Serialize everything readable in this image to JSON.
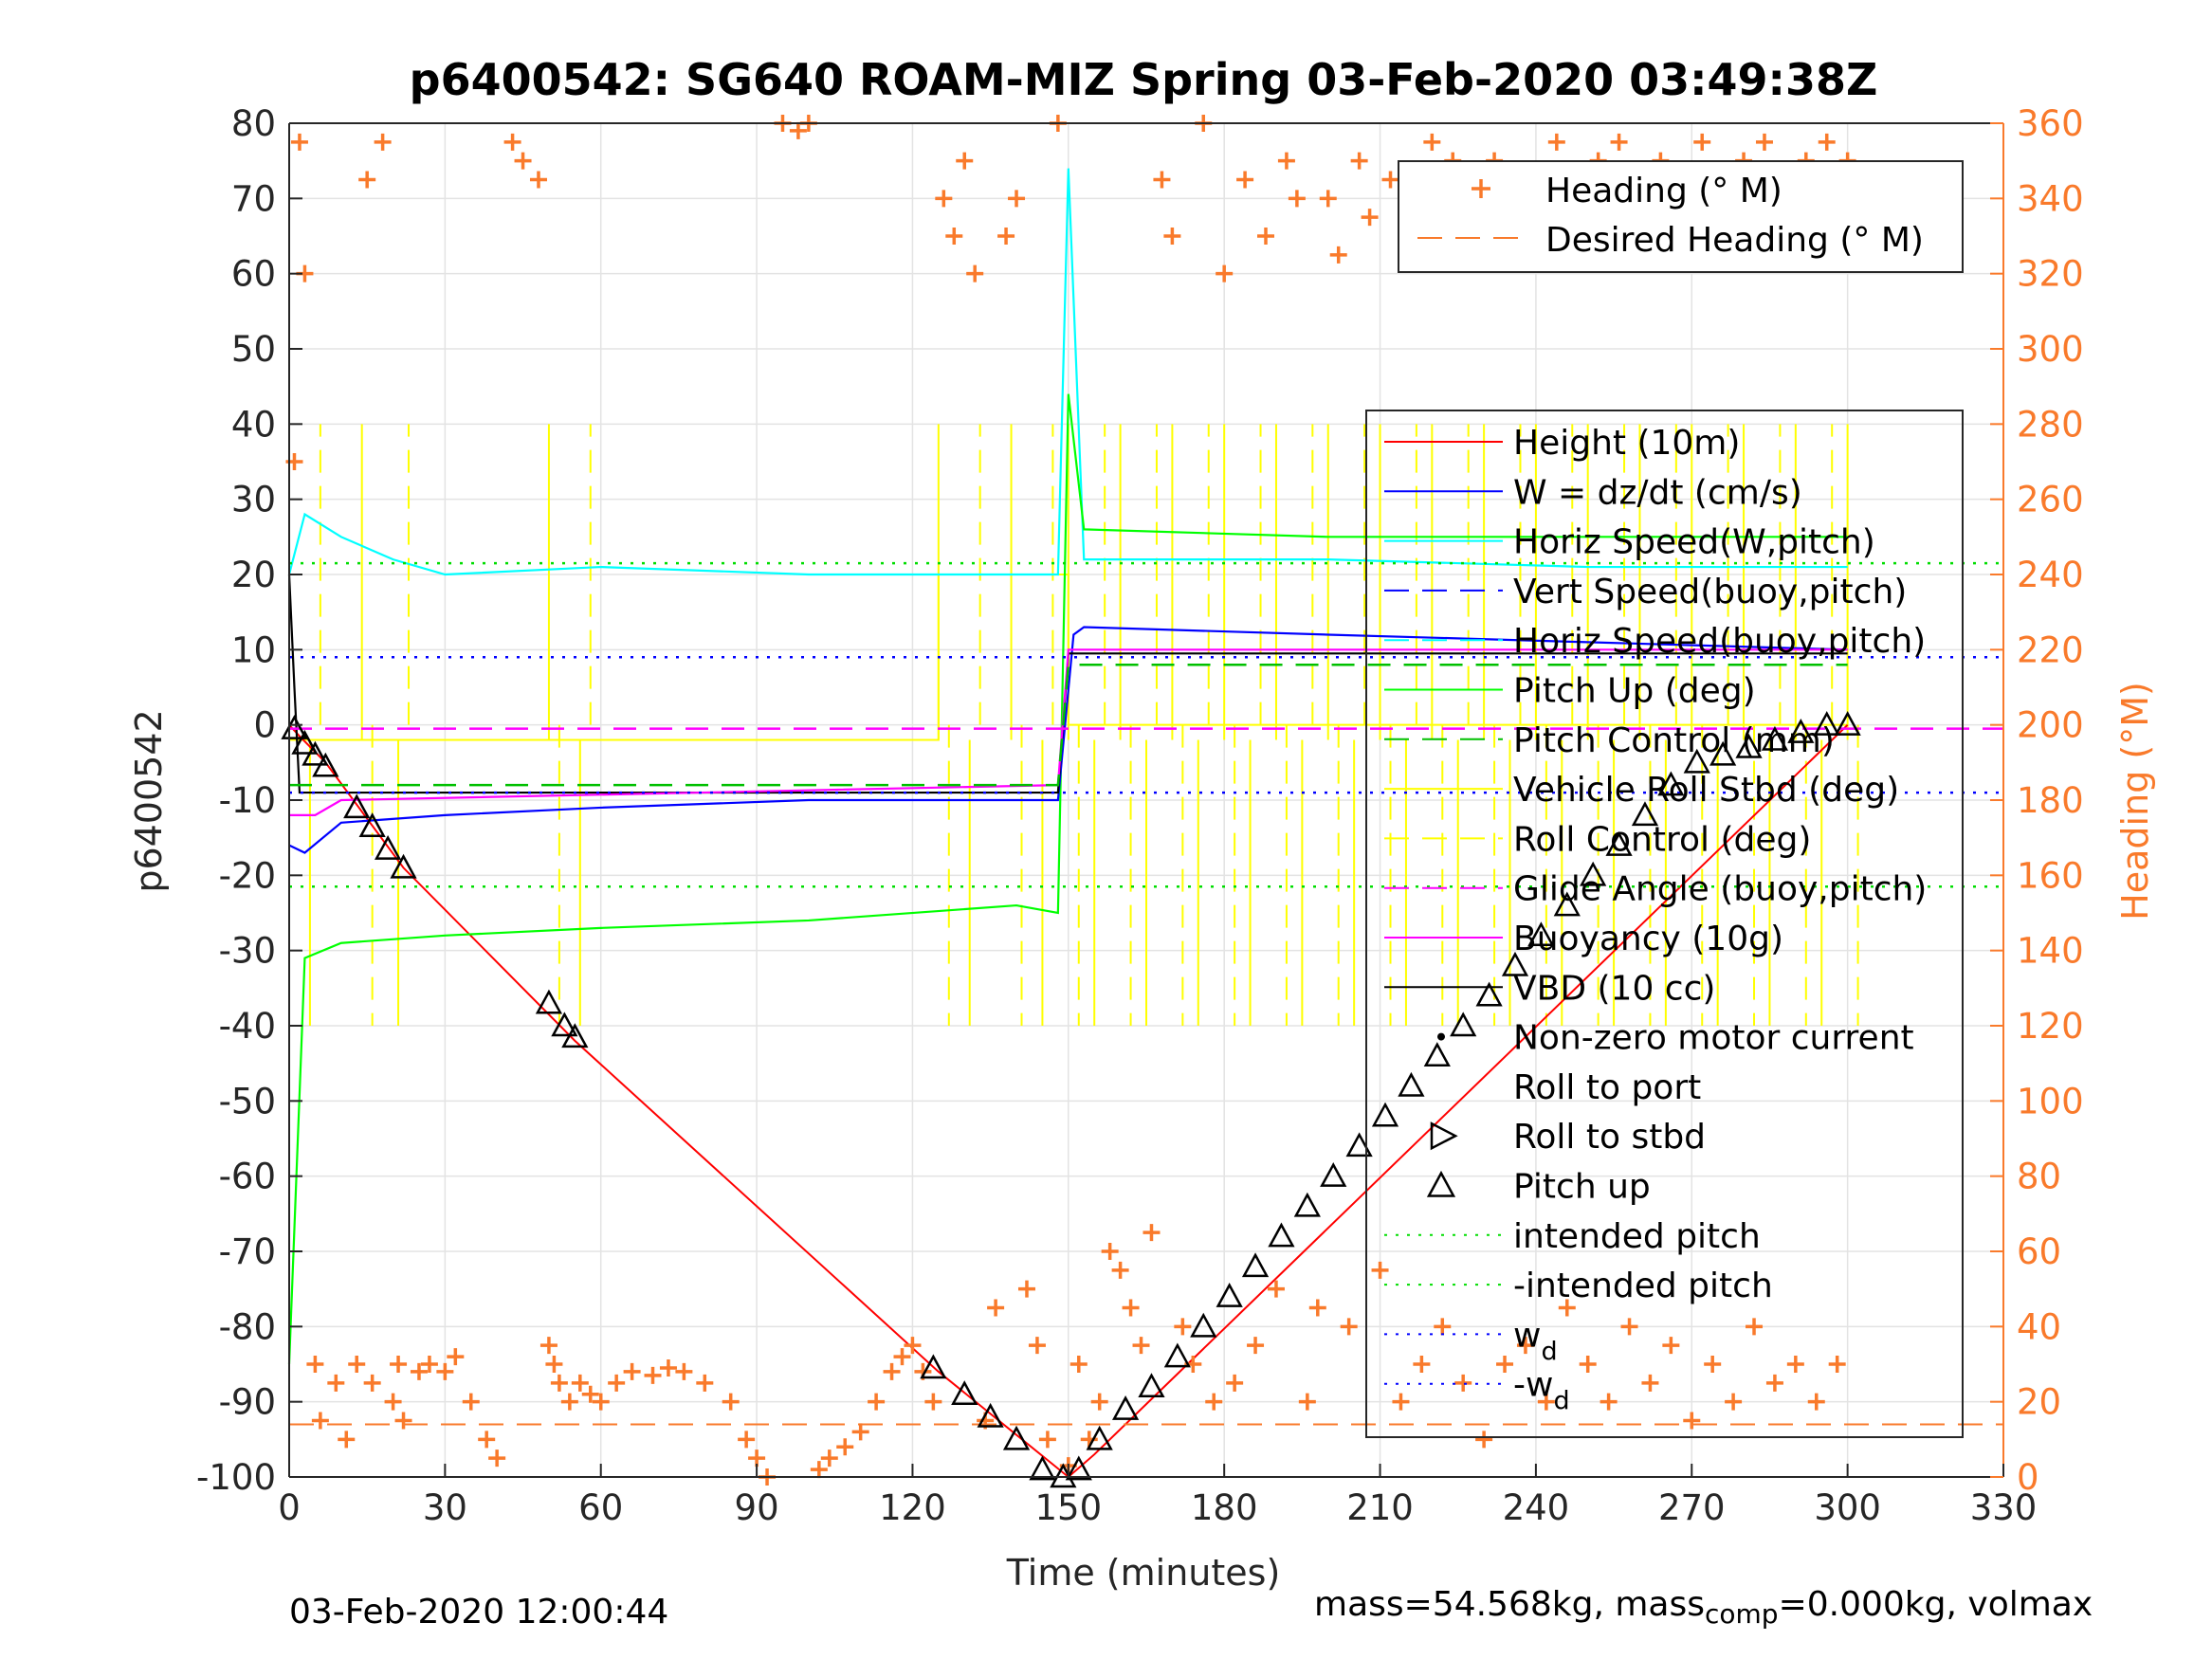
{
  "chart_data": {
    "type": "line",
    "title": "p6400542: SG640 ROAM-MIZ Spring 03-Feb-2020 03:49:38Z",
    "xlabel": "Time (minutes)",
    "ylabel": "p6400542",
    "ylabel_right": "Heading (°M)",
    "xlim": [
      0,
      330
    ],
    "ylim": [
      -100,
      80
    ],
    "ylim_right": [
      0,
      360
    ],
    "xticks": [
      0,
      30,
      60,
      90,
      120,
      150,
      180,
      210,
      240,
      270,
      300,
      330
    ],
    "yticks": [
      -100,
      -90,
      -80,
      -70,
      -60,
      -50,
      -40,
      -30,
      -20,
      -10,
      0,
      10,
      20,
      30,
      40,
      50,
      60,
      70,
      80
    ],
    "yticks_right": [
      0,
      20,
      40,
      60,
      80,
      100,
      120,
      140,
      160,
      180,
      200,
      220,
      240,
      260,
      280,
      300,
      320,
      340,
      360
    ],
    "grid": true,
    "colors": {
      "height": "#ff0000",
      "w": "#0000ff",
      "horiz_w": "#00ffff",
      "vert_buoy": "#0000ff",
      "horiz_buoy": "#00ffff",
      "pitch": "#00ff00",
      "pitch_control": "#00c000",
      "roll": "#ffff00",
      "roll_control": "#ffff00",
      "glide": "#ff00ff",
      "buoyancy": "#ff00ff",
      "vbd": "#000000",
      "heading": "#f97a2b",
      "intended": "#00dd00",
      "wd": "#0000ff",
      "right_axis": "#f97a2b"
    },
    "legend_heading": {
      "position": "top-right",
      "entries": [
        "Heading (° M)",
        "Desired Heading (° M)"
      ]
    },
    "legend_main": {
      "position": "right",
      "entries": [
        "Height (10m)",
        "W = dz/dt (cm/s)",
        "Horiz Speed(W,pitch)",
        "Vert Speed(buoy,pitch)",
        "Horiz Speed(buoy,pitch)",
        "Pitch Up (deg)",
        "Pitch Control (mm)",
        "Vehicle Roll Stbd (deg)",
        "Roll Control (deg)",
        "Glide Angle (buoy,pitch)",
        "Buoyancy (10g)",
        "VBD (10 cc)",
        "Non-zero motor current",
        "Roll to port",
        "Roll to stbd",
        "Pitch up",
        "intended pitch",
        "-intended pitch",
        "w_d",
        "-w_d"
      ]
    },
    "series": [
      {
        "name": "Height (10m)",
        "x": [
          0,
          2,
          7,
          22,
          55,
          125,
          150,
          155,
          300
        ],
        "y": [
          0,
          -1.5,
          -5,
          -19,
          -42,
          -86,
          -100,
          -97,
          0
        ]
      },
      {
        "name": "Horiz Speed(W,pitch)",
        "x": [
          0,
          3,
          10,
          20,
          30,
          60,
          100,
          130,
          148,
          150,
          153,
          200,
          250,
          300
        ],
        "y": [
          20,
          28,
          25,
          22,
          20,
          21,
          20,
          20,
          20,
          74,
          22,
          22,
          21,
          21
        ]
      },
      {
        "name": "Pitch Up (deg)",
        "x": [
          0,
          3,
          10,
          30,
          60,
          100,
          140,
          148,
          150,
          153,
          200,
          250,
          300
        ],
        "y": [
          -85,
          -31,
          -29,
          -28,
          -27,
          -26,
          -24,
          -25,
          44,
          26,
          25,
          25,
          25
        ]
      },
      {
        "name": "W = dz/dt (cm/s)",
        "x": [
          0,
          3,
          10,
          30,
          60,
          100,
          140,
          148,
          151,
          153,
          200,
          250,
          300
        ],
        "y": [
          -16,
          -17,
          -13,
          -12,
          -11,
          -10,
          -10,
          -10,
          12,
          13,
          12,
          11,
          10
        ]
      },
      {
        "name": "VBD (10 cc)",
        "x": [
          0,
          1,
          2,
          148,
          150,
          300
        ],
        "y": [
          20,
          5,
          -9,
          -9,
          9.5,
          9.5
        ]
      },
      {
        "name": "Buoyancy (10g)",
        "x": [
          0,
          5,
          10,
          148,
          150,
          300
        ],
        "y": [
          -12,
          -12,
          -10,
          -8,
          10,
          10
        ]
      },
      {
        "name": "Glide Angle (buoy,pitch)",
        "x": [
          0,
          330
        ],
        "y": [
          -0.5,
          -0.5
        ]
      },
      {
        "name": "Pitch Control (mm)",
        "x": [
          0,
          148,
          150,
          300
        ],
        "y": [
          -8,
          -8,
          8,
          8
        ]
      },
      {
        "name": "intended pitch",
        "x": [
          0,
          330
        ],
        "y": [
          21.5,
          21.5
        ]
      },
      {
        "name": "-intended pitch",
        "x": [
          0,
          330
        ],
        "y": [
          -21.5,
          -21.5
        ]
      },
      {
        "name": "w_d",
        "x": [
          0,
          330
        ],
        "y": [
          9,
          9
        ]
      },
      {
        "name": "-w_d",
        "x": [
          0,
          330
        ],
        "y": [
          -9,
          -9
        ]
      }
    ],
    "pitch_up_markers": {
      "x": [
        1,
        3,
        5,
        7,
        13,
        16,
        19,
        22,
        50,
        53,
        55,
        124,
        130,
        135,
        140,
        145,
        149,
        152,
        156,
        161,
        166,
        171,
        176,
        181,
        186,
        191,
        196,
        201,
        206,
        211,
        216,
        221,
        226,
        231,
        236,
        241,
        246,
        251,
        256,
        261,
        266,
        271,
        276,
        281,
        286,
        291,
        296,
        300
      ],
      "y": [
        -0.5,
        -2.5,
        -4,
        -5.5,
        -11,
        -13.5,
        -16.5,
        -19,
        -37,
        -40,
        -41.5,
        -85.5,
        -89,
        -92,
        -95,
        -99,
        -100,
        -99,
        -95,
        -91,
        -88,
        -84,
        -80,
        -76,
        -72,
        -68,
        -64,
        -60,
        -56,
        -52,
        -48,
        -44,
        -40,
        -36,
        -32,
        -28,
        -24,
        -20,
        -16,
        -12,
        -8,
        -5,
        -4,
        -3,
        -2,
        -1,
        0,
        0
      ]
    },
    "heading_points": {
      "x": [
        1,
        2,
        3,
        5,
        6,
        9,
        11,
        13,
        15,
        16,
        18,
        20,
        21,
        22,
        25,
        27,
        30,
        32,
        35,
        38,
        40,
        43,
        45,
        48,
        50,
        51,
        52,
        54,
        56,
        58,
        60,
        63,
        66,
        70,
        73,
        76,
        80,
        85,
        88,
        90,
        92,
        95,
        98,
        100,
        102,
        104,
        107,
        110,
        113,
        116,
        118,
        120,
        122,
        124,
        126,
        128,
        130,
        132,
        134,
        136,
        138,
        140,
        142,
        144,
        146,
        148,
        150,
        152,
        154,
        156,
        158,
        160,
        162,
        164,
        166,
        168,
        170,
        172,
        174,
        176,
        178,
        180,
        182,
        184,
        186,
        188,
        190,
        192,
        194,
        196,
        198,
        200,
        202,
        204,
        206,
        208,
        210,
        212,
        214,
        216,
        218,
        220,
        222,
        224,
        226,
        228,
        230,
        232,
        234,
        236,
        238,
        240,
        242,
        244,
        246,
        248,
        250,
        252,
        254,
        256,
        258,
        260,
        262,
        264,
        266,
        268,
        270,
        272,
        274,
        276,
        278,
        280,
        282,
        284,
        286,
        288,
        290,
        292,
        294,
        296,
        298,
        300
      ],
      "y": [
        270,
        355,
        320,
        30,
        15,
        25,
        10,
        30,
        345,
        25,
        355,
        20,
        30,
        15,
        28,
        30,
        28,
        32,
        20,
        10,
        5,
        355,
        350,
        345,
        35,
        30,
        25,
        20,
        25,
        22,
        20,
        25,
        28,
        27,
        29,
        28,
        25,
        20,
        10,
        5,
        0,
        360,
        358,
        360,
        2,
        5,
        8,
        12,
        20,
        28,
        32,
        35,
        28,
        20,
        340,
        330,
        350,
        320,
        15,
        45,
        330,
        340,
        50,
        35,
        10,
        360,
        3,
        30,
        10,
        20,
        60,
        55,
        45,
        35,
        65,
        345,
        330,
        40,
        30,
        360,
        20,
        320,
        25,
        345,
        35,
        330,
        50,
        350,
        340,
        20,
        45,
        340,
        325,
        40,
        350,
        335,
        55,
        345,
        20,
        340,
        30,
        355,
        40,
        350,
        25,
        345,
        10,
        350,
        30,
        345,
        35,
        340,
        20,
        355,
        45,
        345,
        30,
        350,
        20,
        355,
        40,
        345,
        25,
        350,
        35,
        340,
        15,
        355,
        30,
        345,
        20,
        350,
        40,
        355,
        25,
        345,
        30,
        350,
        20,
        355,
        30,
        350
      ]
    },
    "desired_heading_right": 14,
    "roll_spikes_x": [
      4,
      14,
      21,
      50,
      56,
      125,
      131,
      139,
      145,
      150,
      155,
      160,
      165,
      170,
      175,
      180,
      185,
      190,
      195,
      200,
      205,
      210,
      215,
      220,
      225,
      230,
      235,
      240,
      245,
      250,
      255,
      260,
      265,
      270,
      275,
      280,
      285,
      290,
      295,
      300
    ]
  },
  "footer": {
    "left": "03-Feb-2020 12:00:44",
    "right_pre": "mass=54.568kg, mass",
    "right_sub": "comp",
    "right_post": "=0.000kg, volmax"
  }
}
